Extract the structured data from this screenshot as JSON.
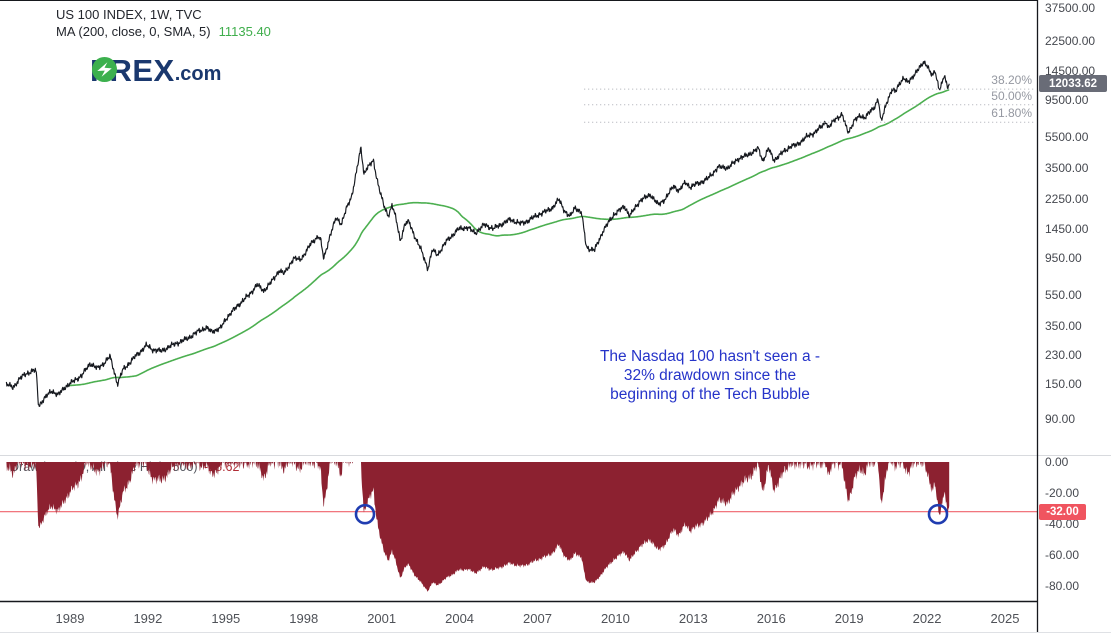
{
  "legend": {
    "symbol_title": "US 100 INDEX, 1W, TVC",
    "ma_label": "MA (200, close, 0, SMA, 5)",
    "ma_value": "11135.40"
  },
  "logo": {
    "part1": "F",
    "part2": "REX",
    "suffix": ".com"
  },
  "annotation": {
    "line1": "The Nasdaq 100 hasn't seen a -",
    "line2": "32% drawdown since the",
    "line3": "beginning of the Tech Bubble"
  },
  "price_scale": {
    "last_price_label": "12033.62"
  },
  "drawdown_panel": {
    "legend_label": "Drawdown (D, All Time High, 500)",
    "legend_value": "-28.62",
    "level_label": "-32.00"
  },
  "colors": {
    "price_line": "#15181e",
    "ma_line": "#4caf50",
    "ma_value_text": "#3fae4c",
    "drawdown_fill": "#8c2130",
    "level_line": "#ef626b",
    "level_badge_bg": "#f0545f",
    "price_badge_bg": "#696c77",
    "circle_stroke": "#1f3cb0",
    "annotation_text": "#2634c9",
    "fib_line": "#aaacb4",
    "fib_label": "#9598a1",
    "axis_text": "#45484f",
    "logo_navy": "#1a386e",
    "logo_green": "#3cb04e",
    "dd_legend_value": "#b02c35"
  },
  "chart_data": {
    "type": "line",
    "title": "US 100 INDEX weekly close (log scale) with 200-week SMA, and drawdown-from-all-time-high subpanel",
    "x_axis": {
      "ticks": [
        1989,
        1992,
        1995,
        1998,
        2001,
        2004,
        2007,
        2010,
        2013,
        2016,
        2019,
        2022,
        2025
      ],
      "range": [
        1986.4,
        2026.3
      ]
    },
    "price_axis": {
      "scale": "log",
      "ticks": [
        37500,
        22500,
        14500,
        9500,
        5500,
        3500,
        2250,
        1450,
        950,
        550,
        350,
        230,
        150,
        90
      ],
      "last_price": 12033.62
    },
    "drawdown_axis": {
      "ticks": [
        0,
        -20,
        -40,
        -60,
        -80
      ],
      "range": [
        -90,
        2
      ],
      "unit": "%"
    },
    "legend_position": "top-left",
    "grid": false,
    "series": [
      {
        "name": "US 100 close",
        "type": "line",
        "color": "#15181e",
        "anchors": [
          [
            1986.55,
            150
          ],
          [
            1986.8,
            142
          ],
          [
            1987.05,
            162
          ],
          [
            1987.35,
            176
          ],
          [
            1987.6,
            183
          ],
          [
            1987.7,
            180
          ],
          [
            1987.79,
            109
          ],
          [
            1988.0,
            121
          ],
          [
            1988.3,
            136
          ],
          [
            1988.55,
            128
          ],
          [
            1988.8,
            143
          ],
          [
            1989.1,
            155
          ],
          [
            1989.45,
            170
          ],
          [
            1989.78,
            203
          ],
          [
            1990.05,
            188
          ],
          [
            1990.3,
            203
          ],
          [
            1990.54,
            224
          ],
          [
            1990.7,
            180
          ],
          [
            1990.83,
            150
          ],
          [
            1991.05,
            186
          ],
          [
            1991.3,
            205
          ],
          [
            1991.6,
            232
          ],
          [
            1991.95,
            264
          ],
          [
            1992.15,
            250
          ],
          [
            1992.5,
            242
          ],
          [
            1992.8,
            258
          ],
          [
            1993.1,
            272
          ],
          [
            1993.5,
            290
          ],
          [
            1993.95,
            325
          ],
          [
            1994.25,
            342
          ],
          [
            1994.45,
            322
          ],
          [
            1994.8,
            340
          ],
          [
            1995.05,
            398
          ],
          [
            1995.5,
            480
          ],
          [
            1995.9,
            552
          ],
          [
            1996.2,
            640
          ],
          [
            1996.45,
            585
          ],
          [
            1996.8,
            680
          ],
          [
            1997.05,
            790
          ],
          [
            1997.25,
            750
          ],
          [
            1997.6,
            940
          ],
          [
            1997.85,
            920
          ],
          [
            1998.05,
            1010
          ],
          [
            1998.3,
            1180
          ],
          [
            1998.55,
            1300
          ],
          [
            1998.65,
            1230
          ],
          [
            1998.77,
            935
          ],
          [
            1999.0,
            1290
          ],
          [
            1999.25,
            1700
          ],
          [
            1999.45,
            1560
          ],
          [
            1999.65,
            1950
          ],
          [
            1999.85,
            2350
          ],
          [
            2000.0,
            3150
          ],
          [
            2000.2,
            4700
          ],
          [
            2000.32,
            3220
          ],
          [
            2000.42,
            3520
          ],
          [
            2000.55,
            3680
          ],
          [
            2000.68,
            3900
          ],
          [
            2000.8,
            3100
          ],
          [
            2000.95,
            2450
          ],
          [
            2001.1,
            1980
          ],
          [
            2001.25,
            1750
          ],
          [
            2001.4,
            2060
          ],
          [
            2001.55,
            1680
          ],
          [
            2001.72,
            1210
          ],
          [
            2001.9,
            1560
          ],
          [
            2002.05,
            1600
          ],
          [
            2002.25,
            1330
          ],
          [
            2002.5,
            1080
          ],
          [
            2002.78,
            810
          ],
          [
            2002.95,
            1060
          ],
          [
            2003.15,
            990
          ],
          [
            2003.5,
            1210
          ],
          [
            2003.95,
            1440
          ],
          [
            2004.3,
            1480
          ],
          [
            2004.6,
            1360
          ],
          [
            2004.95,
            1540
          ],
          [
            2005.3,
            1450
          ],
          [
            2005.65,
            1560
          ],
          [
            2005.95,
            1660
          ],
          [
            2006.35,
            1560
          ],
          [
            2006.7,
            1650
          ],
          [
            2007.05,
            1790
          ],
          [
            2007.35,
            1870
          ],
          [
            2007.6,
            1990
          ],
          [
            2007.82,
            2220
          ],
          [
            2008.05,
            1880
          ],
          [
            2008.25,
            1720
          ],
          [
            2008.45,
            1990
          ],
          [
            2008.7,
            1820
          ],
          [
            2008.88,
            1120
          ],
          [
            2008.95,
            1090
          ],
          [
            2009.2,
            1060
          ],
          [
            2009.55,
            1430
          ],
          [
            2009.95,
            1790
          ],
          [
            2010.35,
            2010
          ],
          [
            2010.55,
            1750
          ],
          [
            2010.95,
            2190
          ],
          [
            2011.15,
            2280
          ],
          [
            2011.35,
            2390
          ],
          [
            2011.65,
            2050
          ],
          [
            2011.95,
            2280
          ],
          [
            2012.25,
            2720
          ],
          [
            2012.45,
            2520
          ],
          [
            2012.7,
            2860
          ],
          [
            2012.9,
            2660
          ],
          [
            2013.15,
            2800
          ],
          [
            2013.55,
            3000
          ],
          [
            2013.95,
            3560
          ],
          [
            2014.35,
            3540
          ],
          [
            2014.75,
            4050
          ],
          [
            2015.1,
            4250
          ],
          [
            2015.5,
            4680
          ],
          [
            2015.67,
            3900
          ],
          [
            2015.9,
            4680
          ],
          [
            2016.1,
            3940
          ],
          [
            2016.45,
            4430
          ],
          [
            2016.75,
            4840
          ],
          [
            2016.95,
            4890
          ],
          [
            2017.3,
            5450
          ],
          [
            2017.65,
            5900
          ],
          [
            2017.95,
            6440
          ],
          [
            2018.1,
            7020
          ],
          [
            2018.2,
            6330
          ],
          [
            2018.5,
            7280
          ],
          [
            2018.73,
            7690
          ],
          [
            2018.85,
            6600
          ],
          [
            2018.97,
            5920
          ],
          [
            2019.2,
            7060
          ],
          [
            2019.45,
            7550
          ],
          [
            2019.6,
            7350
          ],
          [
            2019.95,
            8450
          ],
          [
            2020.12,
            9720
          ],
          [
            2020.23,
            6860
          ],
          [
            2020.45,
            9250
          ],
          [
            2020.65,
            11060
          ],
          [
            2020.78,
            10700
          ],
          [
            2020.95,
            12250
          ],
          [
            2021.1,
            13100
          ],
          [
            2021.25,
            12200
          ],
          [
            2021.5,
            13750
          ],
          [
            2021.7,
            15050
          ],
          [
            2021.88,
            16650
          ],
          [
            2022.02,
            15650
          ],
          [
            2022.1,
            14300
          ],
          [
            2022.22,
            13450
          ],
          [
            2022.3,
            14650
          ],
          [
            2022.47,
            11100
          ],
          [
            2022.62,
            12620
          ],
          [
            2022.66,
            13700
          ],
          [
            2022.78,
            11350
          ],
          [
            2022.85,
            12033.62
          ]
        ]
      },
      {
        "name": "SMA 200",
        "type": "line",
        "color": "#4caf50",
        "derived": "200-week simple moving average of close",
        "draw_from_year": 1988.9
      },
      {
        "name": "Drawdown from all-time high (%)",
        "type": "area",
        "color": "#8c2130",
        "derived": "percent below running maximum of close"
      }
    ],
    "fib_levels": [
      {
        "label": "38.20%",
        "price": 11140
      },
      {
        "label": "50.00%",
        "price": 8860
      },
      {
        "label": "61.80%",
        "price": 6870
      }
    ],
    "fib_start_year": 2008.8,
    "level_line": {
      "value": -32,
      "label": "-32.00"
    },
    "circle_markers": [
      {
        "year": 2000.36,
        "value": -32
      },
      {
        "year": 2022.42,
        "value": -32
      }
    ],
    "series_start_year": 1986.55,
    "series_end_year": 2022.85
  }
}
